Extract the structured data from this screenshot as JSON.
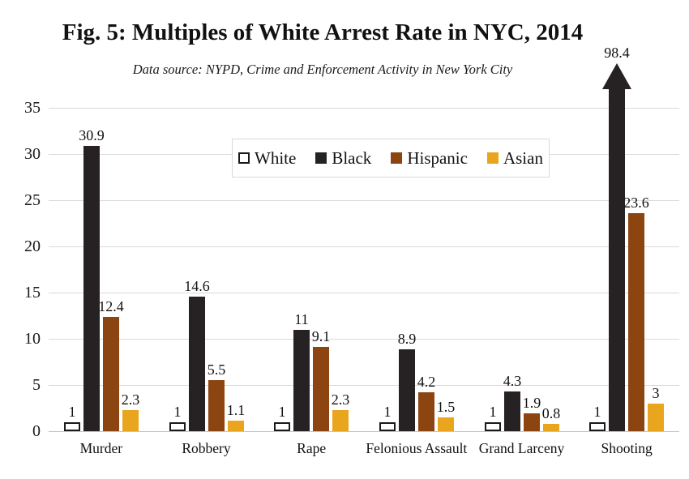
{
  "title": "Fig. 5: Multiples of White Arrest Rate in NYC, 2014",
  "subtitle": "Data source: NYPD, Crime and Enforcement Activity in New York City",
  "colors": {
    "white_series_fill": "#FFFFFF",
    "white_series_border": "#1A1A1A",
    "black_series": "#262223",
    "hispanic_series": "#8C4510",
    "asian_series": "#E9A51D",
    "gridline": "#DADADA",
    "axis_line": "#C4C4C4",
    "text": "#111111"
  },
  "chart_data": {
    "type": "bar",
    "title": "Fig. 5: Multiples of White Arrest Rate in NYC, 2014",
    "subtitle": "Data source: NYPD, Crime and Enforcement Activity in New York City",
    "categories": [
      "Murder",
      "Robbery",
      "Rape",
      "Felonious Assault",
      "Grand Larceny",
      "Shooting"
    ],
    "series": [
      {
        "name": "White",
        "color": "#FFFFFF",
        "border": "#1A1A1A",
        "values": [
          1,
          1,
          1,
          1,
          1,
          1
        ]
      },
      {
        "name": "Black",
        "color": "#262223",
        "values": [
          30.9,
          14.6,
          11,
          8.9,
          4.3,
          98.4
        ]
      },
      {
        "name": "Hispanic",
        "color": "#8C4510",
        "values": [
          12.4,
          5.5,
          9.1,
          4.2,
          1.9,
          23.6
        ]
      },
      {
        "name": "Asian",
        "color": "#E9A51D",
        "values": [
          2.3,
          1.1,
          2.3,
          1.5,
          0.8,
          3
        ]
      }
    ],
    "xlabel": "",
    "ylabel": "",
    "ylim": [
      0,
      35
    ],
    "yticks": [
      0,
      5,
      10,
      15,
      20,
      25,
      30,
      35
    ],
    "grid": true,
    "legend_position": "top-center",
    "legend_entries": [
      "White",
      "Black",
      "Hispanic",
      "Asian"
    ],
    "overflow_indicator": {
      "series": "Black",
      "category": "Shooting",
      "value": 98.4,
      "style": "arrow"
    }
  }
}
